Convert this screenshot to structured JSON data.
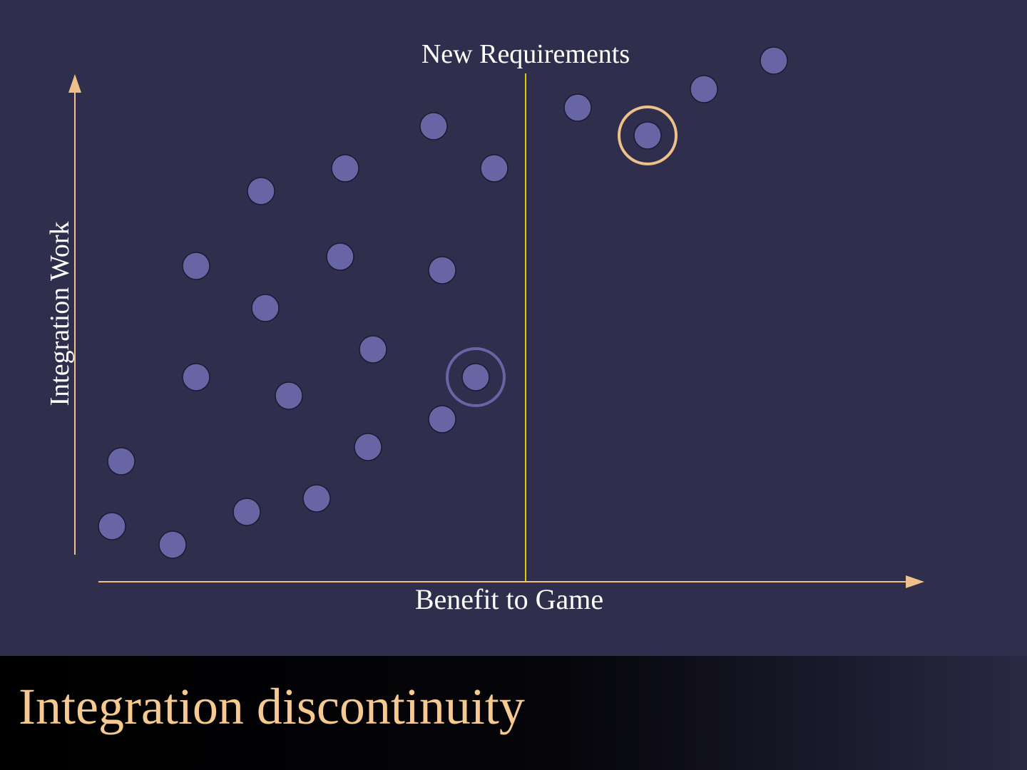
{
  "labels": {
    "threshold": "New Requirements",
    "y_axis": "Integration Work",
    "x_axis": "Benefit to Game"
  },
  "footer": {
    "title": "Integration discontinuity"
  }
}
